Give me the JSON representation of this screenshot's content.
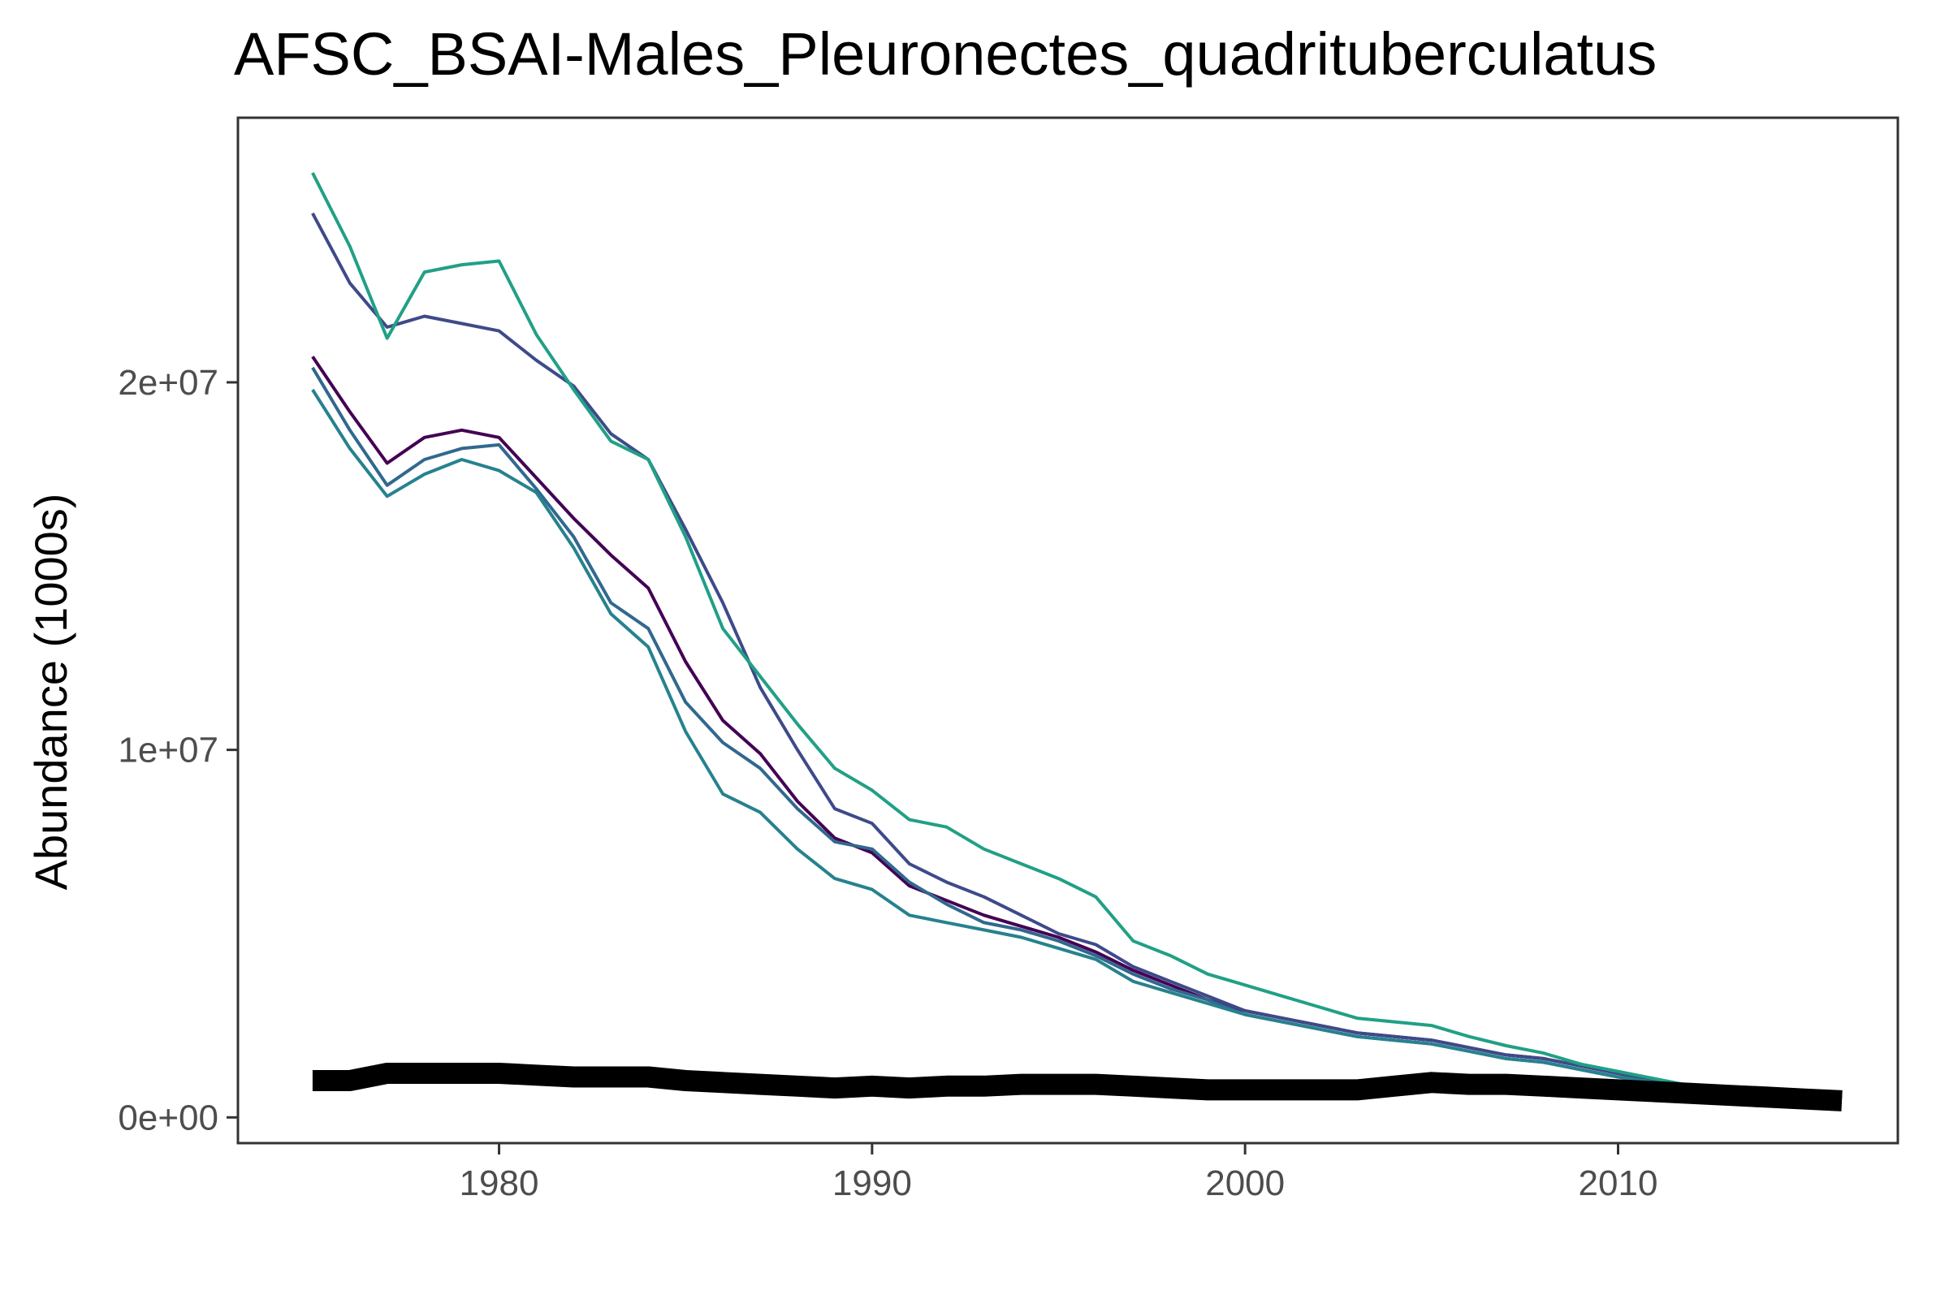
{
  "chart_data": {
    "type": "line",
    "title": "AFSC_BSAI-Males_Pleuronectes_quadrituberculatus",
    "xlabel": "",
    "ylabel": "Abundance (1000s)",
    "xlim": [
      1973,
      2017.5
    ],
    "ylim": [
      -700000,
      27200000
    ],
    "x_ticks": [
      1980,
      1990,
      2000,
      2010
    ],
    "x_tick_labels": [
      "1980",
      "1990",
      "2000",
      "2010"
    ],
    "y_ticks": [
      0,
      10000000,
      20000000
    ],
    "y_tick_labels": [
      "0e+00",
      "1e+07",
      "2e+07"
    ],
    "grid": false,
    "legend": "none",
    "x": [
      1975,
      1976,
      1977,
      1978,
      1979,
      1980,
      1981,
      1982,
      1983,
      1984,
      1985,
      1986,
      1987,
      1988,
      1989,
      1990,
      1991,
      1992,
      1993,
      1994,
      1995,
      1996,
      1997,
      1998,
      1999,
      2000,
      2001,
      2002,
      2003,
      2004,
      2005,
      2006,
      2007,
      2008,
      2009,
      2010,
      2011,
      2012,
      2013,
      2014,
      2015,
      2016
    ],
    "series": [
      {
        "color": "#440154",
        "width": 4,
        "values": [
          20700000,
          19200000,
          17800000,
          18500000,
          18700000,
          18500000,
          17400000,
          16300000,
          15300000,
          14400000,
          12400000,
          10800000,
          9900000,
          8600000,
          7600000,
          7200000,
          6300000,
          5900000,
          5500000,
          5200000,
          4900000,
          4500000,
          4000000,
          3600000,
          3200000,
          2900000,
          2700000,
          2500000,
          2300000,
          2200000,
          2100000,
          1900000,
          1700000,
          1600000,
          1400000,
          1200000,
          1000000,
          850000,
          750000,
          650000,
          600000,
          550000
        ]
      },
      {
        "color": "#3e4a89",
        "width": 4,
        "values": [
          24600000,
          22700000,
          21500000,
          21800000,
          21600000,
          21400000,
          20600000,
          19900000,
          18600000,
          17900000,
          16000000,
          14000000,
          11700000,
          10000000,
          8400000,
          8000000,
          6900000,
          6400000,
          6000000,
          5500000,
          5000000,
          4700000,
          4100000,
          3700000,
          3300000,
          2900000,
          2700000,
          2500000,
          2300000,
          2200000,
          2100000,
          1900000,
          1700000,
          1600000,
          1400000,
          1200000,
          1000000,
          850000,
          750000,
          650000,
          600000,
          550000
        ]
      },
      {
        "color": "#31688e",
        "width": 4,
        "values": [
          20400000,
          18700000,
          17200000,
          17900000,
          18200000,
          18300000,
          17100000,
          15800000,
          14000000,
          13300000,
          11300000,
          10200000,
          9500000,
          8400000,
          7500000,
          7300000,
          6400000,
          5800000,
          5300000,
          5100000,
          4800000,
          4400000,
          3900000,
          3500000,
          3200000,
          2800000,
          2600000,
          2400000,
          2200000,
          2100000,
          2000000,
          1800000,
          1600000,
          1500000,
          1300000,
          1100000,
          950000,
          800000,
          700000,
          650000,
          600000,
          550000
        ]
      },
      {
        "color": "#26828e",
        "width": 4,
        "values": [
          19800000,
          18200000,
          16900000,
          17500000,
          17900000,
          17600000,
          17000000,
          15500000,
          13700000,
          12800000,
          10500000,
          8800000,
          8300000,
          7300000,
          6500000,
          6200000,
          5500000,
          5300000,
          5100000,
          4900000,
          4600000,
          4300000,
          3700000,
          3400000,
          3100000,
          2800000,
          2600000,
          2400000,
          2200000,
          2100000,
          2000000,
          1800000,
          1600000,
          1500000,
          1300000,
          1100000,
          950000,
          800000,
          700000,
          650000,
          600000,
          550000
        ]
      },
      {
        "color": "#21a085",
        "width": 4,
        "values": [
          25700000,
          23700000,
          21200000,
          23000000,
          23200000,
          23300000,
          21300000,
          19800000,
          18400000,
          17900000,
          15800000,
          13300000,
          12000000,
          10700000,
          9500000,
          8900000,
          8100000,
          7900000,
          7300000,
          6900000,
          6500000,
          6000000,
          4800000,
          4400000,
          3900000,
          3600000,
          3300000,
          3000000,
          2700000,
          2600000,
          2500000,
          2200000,
          1950000,
          1750000,
          1450000,
          1250000,
          1050000,
          850000,
          750000,
          650000,
          600000,
          550000
        ]
      },
      {
        "color": "#000000",
        "width": 26,
        "values": [
          1000000,
          1000000,
          1200000,
          1200000,
          1200000,
          1200000,
          1150000,
          1100000,
          1100000,
          1100000,
          1000000,
          950000,
          900000,
          850000,
          800000,
          850000,
          800000,
          850000,
          850000,
          900000,
          900000,
          900000,
          850000,
          800000,
          750000,
          750000,
          750000,
          750000,
          750000,
          850000,
          950000,
          900000,
          900000,
          850000,
          800000,
          750000,
          700000,
          650000,
          600000,
          550000,
          500000,
          450000
        ]
      }
    ]
  }
}
